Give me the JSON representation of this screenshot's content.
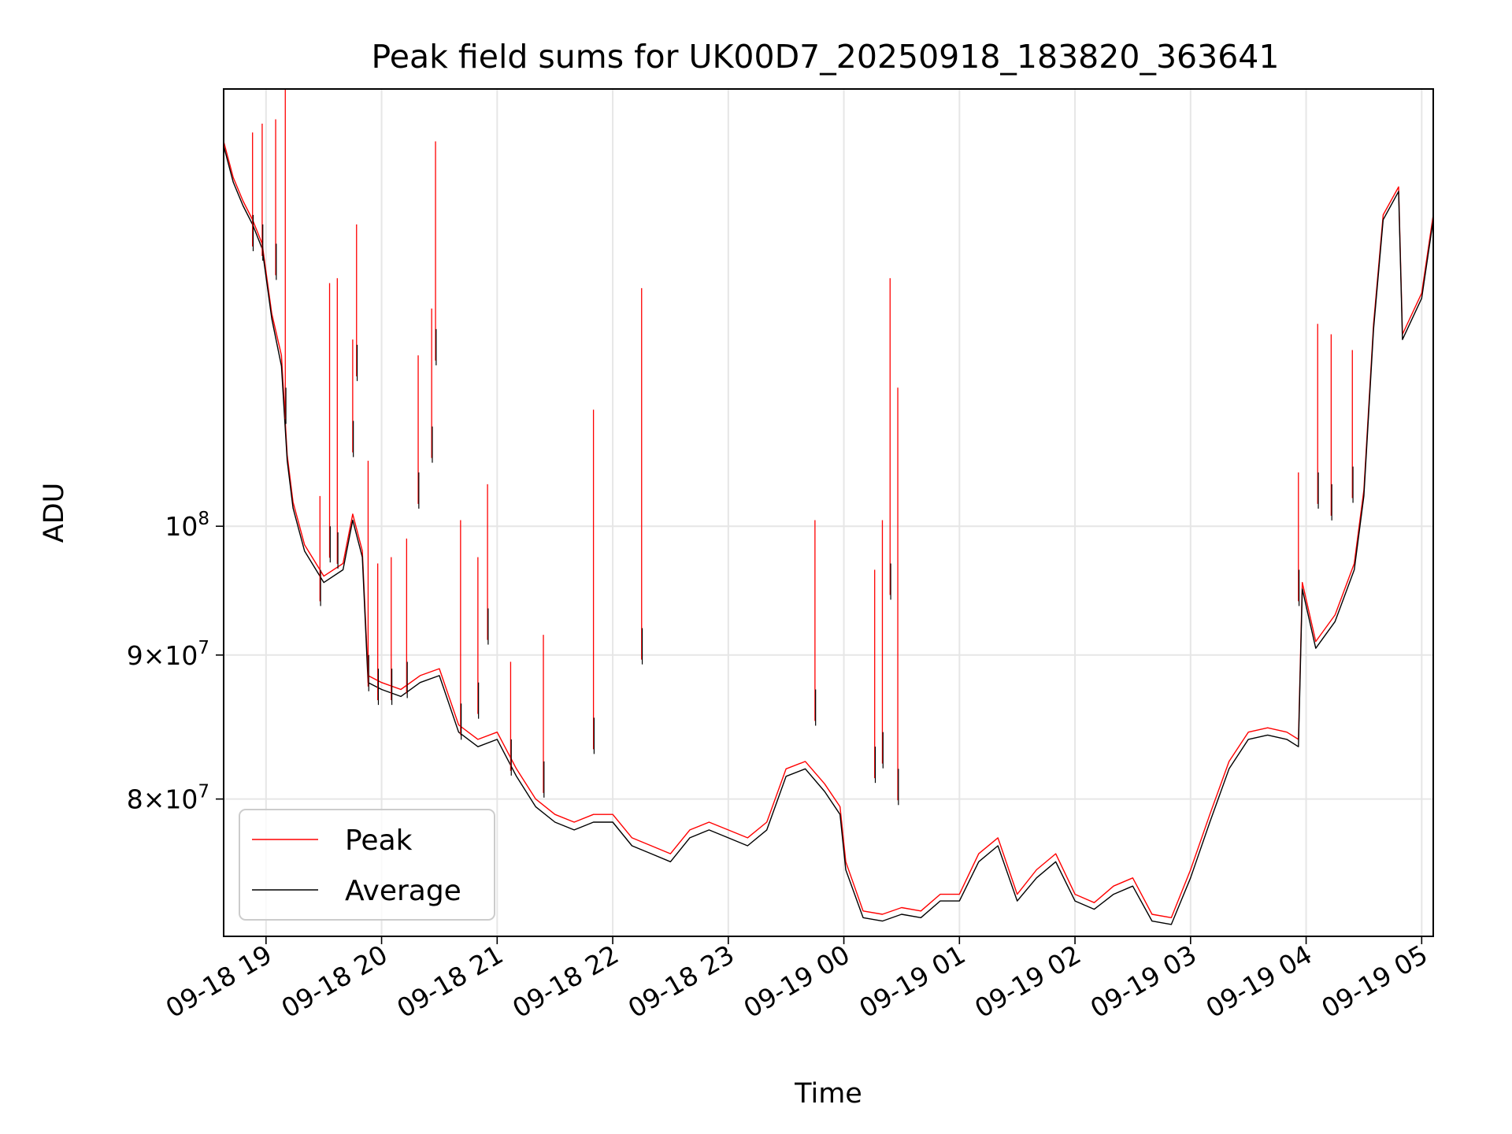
{
  "chart_data": {
    "type": "line",
    "title": "Peak field sums for UK00D7_20250918_183820_363641",
    "xlabel": "Time",
    "ylabel": "ADU",
    "y_scale": "log",
    "xlim": [
      "2025-09-18 18:38",
      "2025-09-19 05:06"
    ],
    "ylim": [
      71500000,
      143000000
    ],
    "grid": true,
    "legend_position": "lower-left",
    "x_ticks": [
      {
        "label": "09-18 19",
        "t": "2025-09-18 19:00"
      },
      {
        "label": "09-18 20",
        "t": "2025-09-18 20:00"
      },
      {
        "label": "09-18 21",
        "t": "2025-09-18 21:00"
      },
      {
        "label": "09-18 22",
        "t": "2025-09-18 22:00"
      },
      {
        "label": "09-18 23",
        "t": "2025-09-18 23:00"
      },
      {
        "label": "09-19 00",
        "t": "2025-09-19 00:00"
      },
      {
        "label": "09-19 01",
        "t": "2025-09-19 01:00"
      },
      {
        "label": "09-19 02",
        "t": "2025-09-19 02:00"
      },
      {
        "label": "09-19 03",
        "t": "2025-09-19 03:00"
      },
      {
        "label": "09-19 04",
        "t": "2025-09-19 04:00"
      },
      {
        "label": "09-19 05",
        "t": "2025-09-19 05:00"
      }
    ],
    "y_ticks": [
      {
        "value": 80000000,
        "base": "8",
        "exp": "7"
      },
      {
        "value": 90000000,
        "base": "9",
        "exp": "7"
      },
      {
        "value": 100000000,
        "base": "",
        "exp": "8"
      }
    ],
    "series": [
      {
        "name": "Peak",
        "color": "#ff0000",
        "points": [
          [
            "2025-09-18 18:38",
            137000000
          ],
          [
            "2025-09-18 18:43",
            133000000
          ],
          [
            "2025-09-18 18:48",
            130500000
          ],
          [
            "2025-09-18 18:53",
            128500000
          ],
          [
            "2025-09-18 18:58",
            126000000
          ],
          [
            "2025-09-18 19:03",
            119000000
          ],
          [
            "2025-09-18 19:08",
            115000000
          ],
          [
            "2025-09-18 19:11",
            106000000
          ],
          [
            "2025-09-18 19:14",
            102000000
          ],
          [
            "2025-09-18 19:20",
            98500000
          ],
          [
            "2025-09-18 19:30",
            96000000
          ],
          [
            "2025-09-18 19:40",
            97000000
          ],
          [
            "2025-09-18 19:45",
            101000000
          ],
          [
            "2025-09-18 19:50",
            98000000
          ],
          [
            "2025-09-18 19:53",
            88500000
          ],
          [
            "2025-09-18 20:00",
            88000000
          ],
          [
            "2025-09-18 20:10",
            87500000
          ],
          [
            "2025-09-18 20:20",
            88500000
          ],
          [
            "2025-09-18 20:30",
            89000000
          ],
          [
            "2025-09-18 20:40",
            85000000
          ],
          [
            "2025-09-18 20:50",
            84000000
          ],
          [
            "2025-09-18 21:00",
            84500000
          ],
          [
            "2025-09-18 21:10",
            82000000
          ],
          [
            "2025-09-18 21:20",
            80000000
          ],
          [
            "2025-09-18 21:30",
            79000000
          ],
          [
            "2025-09-18 21:40",
            78500000
          ],
          [
            "2025-09-18 21:50",
            79000000
          ],
          [
            "2025-09-18 22:00",
            79000000
          ],
          [
            "2025-09-18 22:10",
            77500000
          ],
          [
            "2025-09-18 22:20",
            77000000
          ],
          [
            "2025-09-18 22:30",
            76500000
          ],
          [
            "2025-09-18 22:40",
            78000000
          ],
          [
            "2025-09-18 22:50",
            78500000
          ],
          [
            "2025-09-18 23:00",
            78000000
          ],
          [
            "2025-09-18 23:10",
            77500000
          ],
          [
            "2025-09-18 23:20",
            78500000
          ],
          [
            "2025-09-18 23:30",
            82000000
          ],
          [
            "2025-09-18 23:40",
            82500000
          ],
          [
            "2025-09-18 23:50",
            81000000
          ],
          [
            "2025-09-18 23:58",
            79500000
          ],
          [
            "2025-09-19 00:01",
            76000000
          ],
          [
            "2025-09-19 00:10",
            73000000
          ],
          [
            "2025-09-19 00:20",
            72800000
          ],
          [
            "2025-09-19 00:30",
            73200000
          ],
          [
            "2025-09-19 00:40",
            73000000
          ],
          [
            "2025-09-19 00:50",
            74000000
          ],
          [
            "2025-09-19 01:00",
            74000000
          ],
          [
            "2025-09-19 01:10",
            76500000
          ],
          [
            "2025-09-19 01:20",
            77500000
          ],
          [
            "2025-09-19 01:30",
            74000000
          ],
          [
            "2025-09-19 01:40",
            75500000
          ],
          [
            "2025-09-19 01:50",
            76500000
          ],
          [
            "2025-09-19 02:00",
            74000000
          ],
          [
            "2025-09-19 02:10",
            73500000
          ],
          [
            "2025-09-19 02:20",
            74500000
          ],
          [
            "2025-09-19 02:30",
            75000000
          ],
          [
            "2025-09-19 02:40",
            72800000
          ],
          [
            "2025-09-19 02:50",
            72600000
          ],
          [
            "2025-09-19 03:00",
            75500000
          ],
          [
            "2025-09-19 03:10",
            79000000
          ],
          [
            "2025-09-19 03:20",
            82500000
          ],
          [
            "2025-09-19 03:30",
            84500000
          ],
          [
            "2025-09-19 03:40",
            84800000
          ],
          [
            "2025-09-19 03:50",
            84500000
          ],
          [
            "2025-09-19 03:56",
            84000000
          ],
          [
            "2025-09-19 03:58",
            95500000
          ],
          [
            "2025-09-19 04:05",
            91000000
          ],
          [
            "2025-09-19 04:15",
            93000000
          ],
          [
            "2025-09-19 04:25",
            97000000
          ],
          [
            "2025-09-19 04:30",
            103000000
          ],
          [
            "2025-09-19 04:35",
            118000000
          ],
          [
            "2025-09-19 04:40",
            129000000
          ],
          [
            "2025-09-19 04:48",
            132000000
          ],
          [
            "2025-09-19 04:50",
            117000000
          ],
          [
            "2025-09-19 05:00",
            121000000
          ],
          [
            "2025-09-19 05:06",
            129000000
          ]
        ]
      },
      {
        "name": "Average",
        "color": "#000000",
        "points": [
          [
            "2025-09-18 18:38",
            136500000
          ],
          [
            "2025-09-18 18:43",
            132500000
          ],
          [
            "2025-09-18 18:48",
            130000000
          ],
          [
            "2025-09-18 18:53",
            128000000
          ],
          [
            "2025-09-18 18:58",
            125500000
          ],
          [
            "2025-09-18 19:03",
            118500000
          ],
          [
            "2025-09-18 19:08",
            114000000
          ],
          [
            "2025-09-18 19:11",
            105500000
          ],
          [
            "2025-09-18 19:14",
            101500000
          ],
          [
            "2025-09-18 19:20",
            98000000
          ],
          [
            "2025-09-18 19:30",
            95500000
          ],
          [
            "2025-09-18 19:40",
            96500000
          ],
          [
            "2025-09-18 19:45",
            100500000
          ],
          [
            "2025-09-18 19:50",
            97500000
          ],
          [
            "2025-09-18 19:53",
            88000000
          ],
          [
            "2025-09-18 20:00",
            87500000
          ],
          [
            "2025-09-18 20:10",
            87000000
          ],
          [
            "2025-09-18 20:20",
            88000000
          ],
          [
            "2025-09-18 20:30",
            88500000
          ],
          [
            "2025-09-18 20:40",
            84500000
          ],
          [
            "2025-09-18 20:50",
            83500000
          ],
          [
            "2025-09-18 21:00",
            84000000
          ],
          [
            "2025-09-18 21:10",
            81500000
          ],
          [
            "2025-09-18 21:20",
            79500000
          ],
          [
            "2025-09-18 21:30",
            78500000
          ],
          [
            "2025-09-18 21:40",
            78000000
          ],
          [
            "2025-09-18 21:50",
            78500000
          ],
          [
            "2025-09-18 22:00",
            78500000
          ],
          [
            "2025-09-18 22:10",
            77000000
          ],
          [
            "2025-09-18 22:20",
            76500000
          ],
          [
            "2025-09-18 22:30",
            76000000
          ],
          [
            "2025-09-18 22:40",
            77500000
          ],
          [
            "2025-09-18 22:50",
            78000000
          ],
          [
            "2025-09-18 23:00",
            77500000
          ],
          [
            "2025-09-18 23:10",
            77000000
          ],
          [
            "2025-09-18 23:20",
            78000000
          ],
          [
            "2025-09-18 23:30",
            81500000
          ],
          [
            "2025-09-18 23:40",
            82000000
          ],
          [
            "2025-09-18 23:50",
            80500000
          ],
          [
            "2025-09-18 23:58",
            79000000
          ],
          [
            "2025-09-19 00:01",
            75500000
          ],
          [
            "2025-09-19 00:10",
            72600000
          ],
          [
            "2025-09-19 00:20",
            72400000
          ],
          [
            "2025-09-19 00:30",
            72800000
          ],
          [
            "2025-09-19 00:40",
            72600000
          ],
          [
            "2025-09-19 00:50",
            73600000
          ],
          [
            "2025-09-19 01:00",
            73600000
          ],
          [
            "2025-09-19 01:10",
            76000000
          ],
          [
            "2025-09-19 01:20",
            77000000
          ],
          [
            "2025-09-19 01:30",
            73600000
          ],
          [
            "2025-09-19 01:40",
            75000000
          ],
          [
            "2025-09-19 01:50",
            76000000
          ],
          [
            "2025-09-19 02:00",
            73600000
          ],
          [
            "2025-09-19 02:10",
            73100000
          ],
          [
            "2025-09-19 02:20",
            74000000
          ],
          [
            "2025-09-19 02:30",
            74500000
          ],
          [
            "2025-09-19 02:40",
            72400000
          ],
          [
            "2025-09-19 02:50",
            72200000
          ],
          [
            "2025-09-19 03:00",
            75000000
          ],
          [
            "2025-09-19 03:10",
            78500000
          ],
          [
            "2025-09-19 03:20",
            82000000
          ],
          [
            "2025-09-19 03:30",
            84000000
          ],
          [
            "2025-09-19 03:40",
            84300000
          ],
          [
            "2025-09-19 03:50",
            84000000
          ],
          [
            "2025-09-19 03:56",
            83500000
          ],
          [
            "2025-09-19 03:58",
            95000000
          ],
          [
            "2025-09-19 04:05",
            90500000
          ],
          [
            "2025-09-19 04:15",
            92500000
          ],
          [
            "2025-09-19 04:25",
            96500000
          ],
          [
            "2025-09-19 04:30",
            102500000
          ],
          [
            "2025-09-19 04:35",
            117500000
          ],
          [
            "2025-09-19 04:40",
            128500000
          ],
          [
            "2025-09-19 04:48",
            131500000
          ],
          [
            "2025-09-19 04:50",
            116500000
          ],
          [
            "2025-09-19 05:00",
            120500000
          ],
          [
            "2025-09-19 05:06",
            128500000
          ]
        ]
      }
    ],
    "spikes": [
      {
        "t": "2025-09-18 18:53",
        "peak": 138000000,
        "avg": 129000000
      },
      {
        "t": "2025-09-18 18:58",
        "peak": 139000000,
        "avg": 128000000
      },
      {
        "t": "2025-09-18 19:05",
        "peak": 139500000,
        "avg": 126000000
      },
      {
        "t": "2025-09-18 19:10",
        "peak": 143000000,
        "avg": 112000000
      },
      {
        "t": "2025-09-18 19:28",
        "peak": 102500000,
        "avg": 96500000
      },
      {
        "t": "2025-09-18 19:33",
        "peak": 122000000,
        "avg": 100000000
      },
      {
        "t": "2025-09-18 19:37",
        "peak": 122500000,
        "avg": 99500000
      },
      {
        "t": "2025-09-18 19:45",
        "peak": 116500000,
        "avg": 109000000
      },
      {
        "t": "2025-09-18 19:47",
        "peak": 128000000,
        "avg": 116000000
      },
      {
        "t": "2025-09-18 19:53",
        "peak": 105500000,
        "avg": 90000000
      },
      {
        "t": "2025-09-18 19:58",
        "peak": 97000000,
        "avg": 89000000
      },
      {
        "t": "2025-09-18 20:05",
        "peak": 97500000,
        "avg": 89000000
      },
      {
        "t": "2025-09-18 20:13",
        "peak": 99000000,
        "avg": 89500000
      },
      {
        "t": "2025-09-18 20:19",
        "peak": 115000000,
        "avg": 104500000
      },
      {
        "t": "2025-09-18 20:26",
        "peak": 119500000,
        "avg": 108500000
      },
      {
        "t": "2025-09-18 20:28",
        "peak": 137000000,
        "avg": 117500000
      },
      {
        "t": "2025-09-18 20:41",
        "peak": 100500000,
        "avg": 86500000
      },
      {
        "t": "2025-09-18 20:50",
        "peak": 97500000,
        "avg": 88000000
      },
      {
        "t": "2025-09-18 20:55",
        "peak": 103500000,
        "avg": 93500000
      },
      {
        "t": "2025-09-18 21:07",
        "peak": 89500000,
        "avg": 84000000
      },
      {
        "t": "2025-09-18 21:24",
        "peak": 91500000,
        "avg": 82500000
      },
      {
        "t": "2025-09-18 21:50",
        "peak": 110000000,
        "avg": 85500000
      },
      {
        "t": "2025-09-18 22:15",
        "peak": 121500000,
        "avg": 92000000
      },
      {
        "t": "2025-09-18 23:45",
        "peak": 100500000,
        "avg": 87500000
      },
      {
        "t": "2025-09-19 00:16",
        "peak": 96500000,
        "avg": 83500000
      },
      {
        "t": "2025-09-19 00:20",
        "peak": 100500000,
        "avg": 84500000
      },
      {
        "t": "2025-09-19 00:24",
        "peak": 122500000,
        "avg": 97000000
      },
      {
        "t": "2025-09-19 00:28",
        "peak": 112000000,
        "avg": 82000000
      },
      {
        "t": "2025-09-19 03:56",
        "peak": 104500000,
        "avg": 96500000
      },
      {
        "t": "2025-09-19 04:06",
        "peak": 118000000,
        "avg": 104500000
      },
      {
        "t": "2025-09-19 04:13",
        "peak": 117000000,
        "avg": 103500000
      },
      {
        "t": "2025-09-19 04:24",
        "peak": 115500000,
        "avg": 105000000
      }
    ]
  }
}
